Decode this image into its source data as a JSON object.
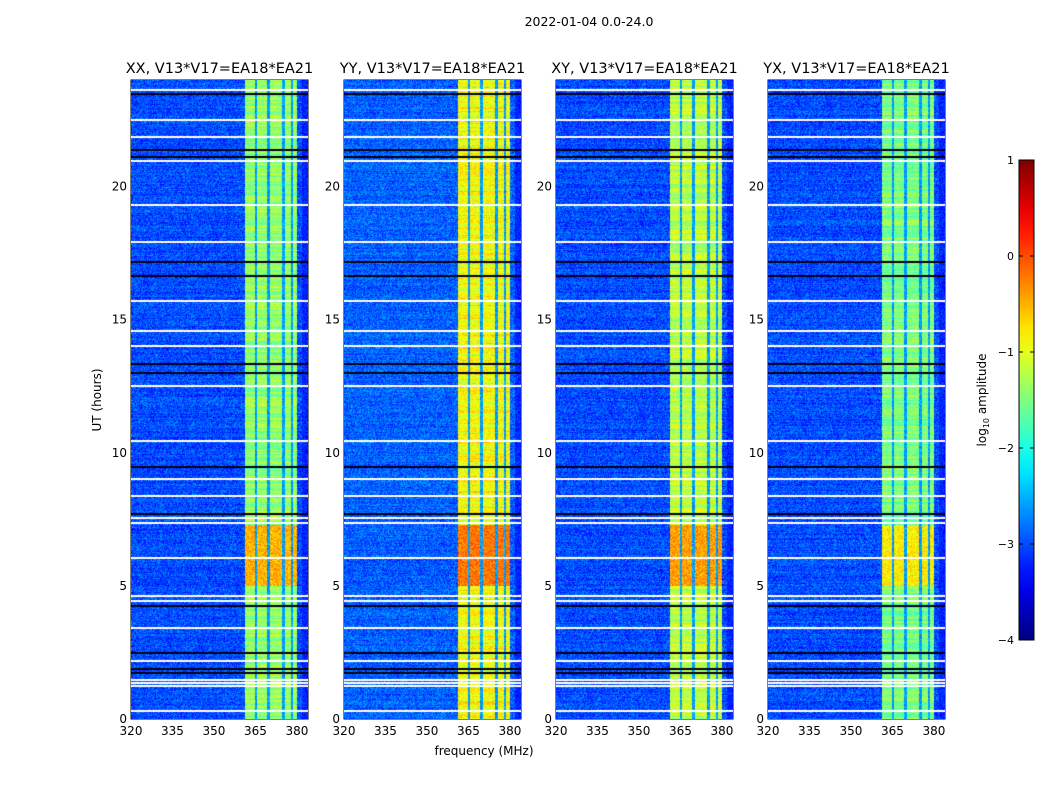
{
  "figure": {
    "title": "2022-01-04 0.0-24.0"
  },
  "chart_data": {
    "type": "heatmap",
    "title": "2022-01-04 0.0-24.0",
    "xlabel": "frequency (MHz)",
    "ylabel": "UT (hours)",
    "xlim": [
      320,
      384
    ],
    "ylim": [
      0,
      24
    ],
    "xticks": [
      320,
      335,
      350,
      365,
      380
    ],
    "yticks": [
      0,
      5,
      10,
      15,
      20
    ],
    "panels": [
      {
        "title": "XX, V13*V17=EA18*EA21",
        "background_log_amp": -3.0,
        "band_log_amp": -1.4,
        "burst_log_amp": -0.5
      },
      {
        "title": "YY, V13*V17=EA18*EA21",
        "background_log_amp": -2.9,
        "band_log_amp": -0.9,
        "burst_log_amp": -0.2
      },
      {
        "title": "XY, V13*V17=EA18*EA21",
        "background_log_amp": -3.0,
        "band_log_amp": -1.2,
        "burst_log_amp": -0.4
      },
      {
        "title": "YX, V13*V17=EA18*EA21",
        "background_log_amp": -3.0,
        "band_log_amp": -1.5,
        "burst_log_amp": -0.8
      }
    ],
    "bright_band_mhz": [
      361,
      380
    ],
    "band_gaps_mhz": [
      365,
      369.5,
      375,
      378
    ],
    "burst_hours": [
      5.0,
      7.3
    ],
    "flagged_rows_hours": [
      0.34,
      1.28,
      1.4,
      1.5,
      2.21,
      3.45,
      4.47,
      4.65,
      6.08,
      7.39,
      7.58,
      8.41,
      9.04,
      10.47,
      12.53,
      14.03,
      14.6,
      15.72,
      17.97,
      19.36,
      20.98,
      21.91,
      22.55,
      23.68
    ],
    "no_data_rows_hours": [
      1.76,
      1.91,
      2.51,
      4.28,
      7.73,
      9.49,
      13.02,
      13.36,
      16.66,
      17.22,
      21.16,
      21.42,
      23.53
    ],
    "colorbar": {
      "label_prefix": "log",
      "label_sub": "10",
      "label_suffix": " amplitude",
      "ticks": [
        1,
        0,
        -1,
        -2,
        -3,
        -4
      ],
      "tick_labels": [
        "1",
        "0",
        "−1",
        "−2",
        "−3",
        "−4"
      ],
      "range": [
        -4,
        1
      ],
      "colormap": "jet"
    }
  }
}
